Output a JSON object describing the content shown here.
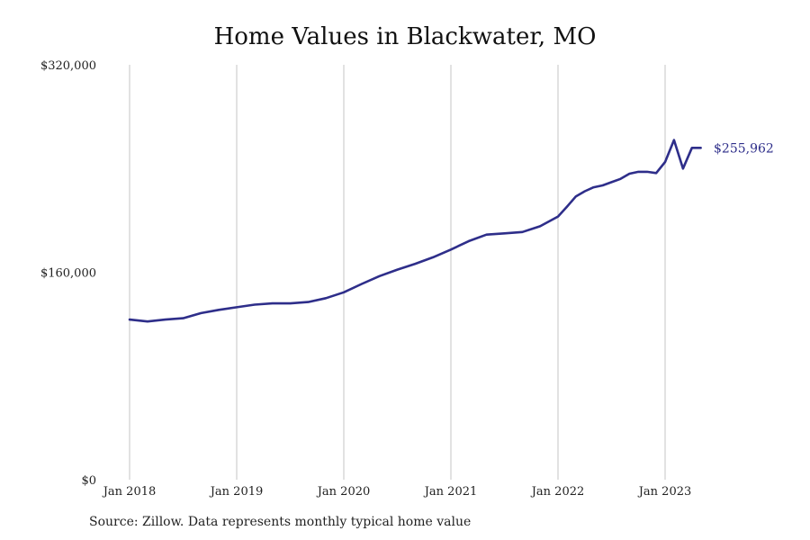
{
  "chart_data": {
    "type": "line",
    "title": "Home Values in Blackwater, MO",
    "xlabel": "",
    "ylabel": "",
    "ylim": [
      0,
      320000
    ],
    "y_ticks": [
      {
        "value": 0,
        "label": "$0"
      },
      {
        "value": 160000,
        "label": "$160,000"
      },
      {
        "value": 320000,
        "label": "$320,000"
      }
    ],
    "x_ticks": [
      {
        "value": 2018.0,
        "label": "Jan 2018"
      },
      {
        "value": 2019.0,
        "label": "Jan 2019"
      },
      {
        "value": 2020.0,
        "label": "Jan 2020"
      },
      {
        "value": 2021.0,
        "label": "Jan 2021"
      },
      {
        "value": 2022.0,
        "label": "Jan 2022"
      },
      {
        "value": 2023.0,
        "label": "Jan 2023"
      }
    ],
    "xlim": [
      2018.0,
      2024.0
    ],
    "grid": "vertical",
    "line_color": "#2e2e8a",
    "series": [
      {
        "x": [
          2018.0,
          2018.167,
          2018.333,
          2018.5,
          2018.667,
          2018.833,
          2019.0,
          2019.167,
          2019.333,
          2019.5,
          2019.667,
          2019.833,
          2020.0,
          2020.167,
          2020.333,
          2020.5,
          2020.667,
          2020.833,
          2021.0,
          2021.167,
          2021.333,
          2021.5,
          2021.667,
          2021.833,
          2022.0,
          2022.083,
          2022.167,
          2022.25,
          2022.333,
          2022.417,
          2022.5,
          2022.583,
          2022.667,
          2022.75,
          2022.833,
          2022.917,
          2023.0,
          2023.083,
          2023.167,
          2023.25,
          2023.333
        ],
        "values": [
          123500,
          122000,
          123500,
          124500,
          128500,
          131000,
          133000,
          135000,
          136000,
          136000,
          137000,
          140000,
          144500,
          151000,
          157000,
          162000,
          166500,
          171500,
          177500,
          184000,
          189000,
          190000,
          191000,
          195500,
          203000,
          210500,
          218500,
          222500,
          225500,
          227000,
          229500,
          232000,
          236000,
          237500,
          237500,
          236500,
          245000,
          262000,
          240000,
          255962,
          255962
        ],
        "end_value": 255962,
        "end_label": "$255,962"
      }
    ]
  },
  "footer": {
    "source": "Source: Zillow. Data represents monthly typical home value"
  }
}
